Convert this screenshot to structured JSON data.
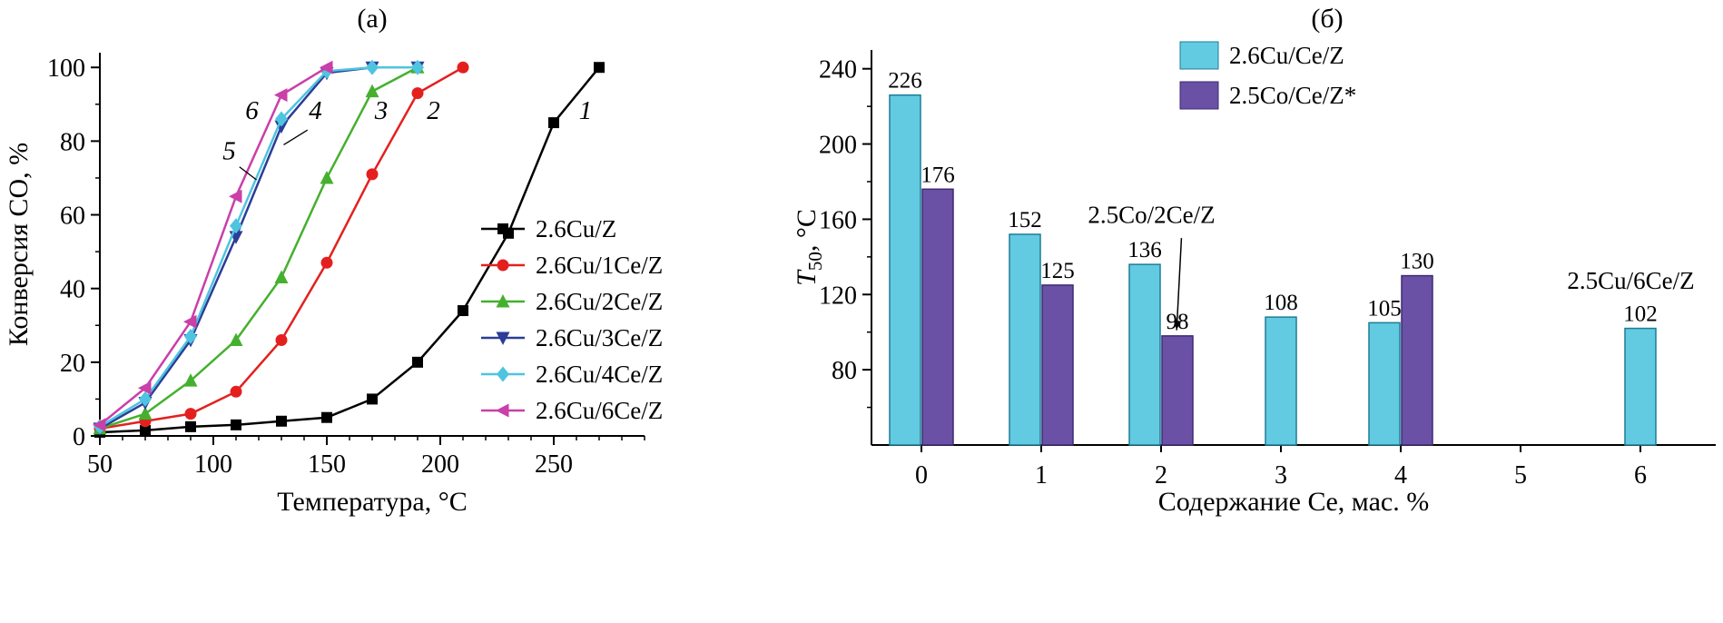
{
  "panels": {
    "a": {
      "title": "(а)"
    },
    "b": {
      "title": "(б)"
    }
  },
  "chart_data": [
    {
      "id": "chart-a",
      "type": "line",
      "title": "(а)",
      "xlabel": "Температура, °C",
      "ylabel": "Конверсия CO, %",
      "xlim": [
        50,
        290
      ],
      "ylim": [
        0,
        104
      ],
      "xticks": [
        50,
        100,
        150,
        200,
        250
      ],
      "yticks": [
        0,
        20,
        40,
        60,
        80,
        100
      ],
      "x_minor_step": 10,
      "y_minor_step": 10,
      "legend_position": "right-middle",
      "series": [
        {
          "name": "2.6Cu/Z",
          "curve_label": "1",
          "color": "#000000",
          "marker": "square",
          "x": [
            50,
            70,
            90,
            110,
            130,
            150,
            170,
            190,
            210,
            230,
            250,
            270
          ],
          "y": [
            1,
            1.5,
            2.5,
            3,
            4,
            5,
            10,
            20,
            34,
            55,
            85,
            100
          ]
        },
        {
          "name": "2.6Cu/1Ce/Z",
          "curve_label": "2",
          "color": "#e4201f",
          "marker": "circle",
          "x": [
            50,
            70,
            90,
            110,
            130,
            150,
            170,
            190,
            210
          ],
          "y": [
            2,
            4,
            6,
            12,
            26,
            47,
            71,
            93,
            100
          ]
        },
        {
          "name": "2.6Cu/2Ce/Z",
          "curve_label": "3",
          "color": "#45b02e",
          "marker": "triangle-up",
          "x": [
            50,
            70,
            90,
            110,
            130,
            150,
            170,
            190
          ],
          "y": [
            2,
            6,
            15,
            26,
            43,
            70,
            93.5,
            100
          ]
        },
        {
          "name": "2.6Cu/3Ce/Z",
          "curve_label": "4",
          "color": "#2b3d96",
          "marker": "triangle-down",
          "x": [
            50,
            70,
            90,
            110,
            130,
            150,
            170,
            190
          ],
          "y": [
            2,
            9,
            26,
            54,
            84,
            98.5,
            100,
            100
          ]
        },
        {
          "name": "2.6Cu/4Ce/Z",
          "curve_label": "5",
          "color": "#4ec4e0",
          "marker": "diamond",
          "x": [
            50,
            70,
            90,
            110,
            130,
            150,
            170,
            190
          ],
          "y": [
            2.5,
            10,
            27,
            57,
            86,
            99,
            100,
            100
          ]
        },
        {
          "name": "2.6Cu/6Ce/Z",
          "curve_label": "6",
          "color": "#ca3fa8",
          "marker": "triangle-left",
          "x": [
            50,
            70,
            90,
            110,
            130,
            150
          ],
          "y": [
            3,
            13,
            31,
            65,
            92.5,
            100
          ]
        }
      ],
      "curve_labels": [
        {
          "text": "1",
          "x": 264,
          "y": 86
        },
        {
          "text": "2",
          "x": 197,
          "y": 86
        },
        {
          "text": "3",
          "x": 174,
          "y": 86
        },
        {
          "text": "4",
          "x": 145,
          "y": 86,
          "leader": [
            141.5,
            83,
            131,
            79
          ]
        },
        {
          "text": "5",
          "x": 107,
          "y": 75,
          "leader": [
            111.5,
            73,
            119,
            69.5
          ]
        },
        {
          "text": "6",
          "x": 117,
          "y": 86
        }
      ]
    },
    {
      "id": "chart-b",
      "type": "bar",
      "title": "(б)",
      "xlabel": "Содержание Ce, мас. %",
      "ylabel_parts": {
        "var": "T",
        "sub": "50",
        "rest": ", °C"
      },
      "categories": [
        0,
        1,
        2,
        3,
        4,
        5,
        6
      ],
      "ylim": [
        40,
        250
      ],
      "yticks": [
        80,
        120,
        160,
        200,
        240
      ],
      "y_minor_step": 20,
      "legend_position": "top-right",
      "series": [
        {
          "name": "2.6Cu/Ce/Z",
          "color": "#63cbe1",
          "edge": "#1c7c96",
          "values": [
            226,
            152,
            136,
            108,
            105,
            null,
            102
          ]
        },
        {
          "name": "2.5Co/Ce/Z*",
          "color": "#6a51a5",
          "edge": "#3c2a72",
          "values": [
            176,
            125,
            98,
            null,
            130,
            null,
            null
          ]
        }
      ],
      "annotations": [
        {
          "text": "2.5Co/2Ce/Z",
          "tx": 1.92,
          "ty": 158,
          "arrow": [
            2.17,
            150,
            2.13,
            101
          ]
        },
        {
          "text": "2.5Cu/6Ce/Z",
          "tx": 5.92,
          "ty": 123
        }
      ]
    }
  ]
}
